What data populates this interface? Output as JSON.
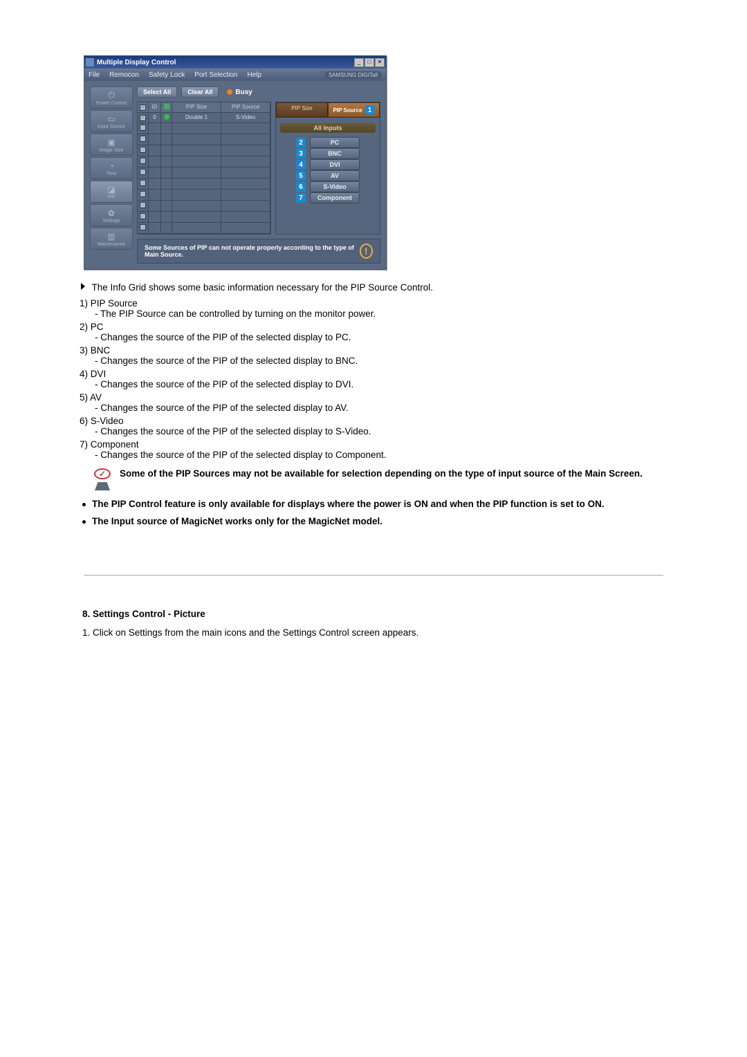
{
  "window": {
    "title": "Multiple Display Control",
    "brand": "SAMSUNG DIGITall",
    "menus": [
      "File",
      "Remocon",
      "Safety Lock",
      "Port Selection",
      "Help"
    ],
    "win_buttons": [
      "_",
      "□",
      "✕"
    ]
  },
  "sidebar": [
    {
      "label": "Power Control",
      "glyph": "⏻"
    },
    {
      "label": "Input Source",
      "glyph": "▭"
    },
    {
      "label": "Image Size",
      "glyph": "▣"
    },
    {
      "label": "Time",
      "glyph": "◔"
    },
    {
      "label": "PIP",
      "glyph": "◪"
    },
    {
      "label": "Settings",
      "glyph": "✿"
    },
    {
      "label": "Maintenance",
      "glyph": "▥"
    }
  ],
  "top_controls": {
    "select_all": "Select All",
    "clear_all": "Clear All",
    "busy": "Busy"
  },
  "grid": {
    "headers": {
      "chk": "",
      "id": "ID",
      "status": "",
      "pip_size": "PIP Size",
      "pip_source": "PIP Source"
    },
    "rows": [
      {
        "checked": true,
        "id": "0",
        "status": "green",
        "pip_size": "Double 1",
        "pip_source": "S-Video"
      },
      {
        "checked": false,
        "id": "",
        "status": "",
        "pip_size": "",
        "pip_source": ""
      },
      {
        "checked": false,
        "id": "",
        "status": "",
        "pip_size": "",
        "pip_source": ""
      },
      {
        "checked": false,
        "id": "",
        "status": "",
        "pip_size": "",
        "pip_source": ""
      },
      {
        "checked": false,
        "id": "",
        "status": "",
        "pip_size": "",
        "pip_source": ""
      },
      {
        "checked": false,
        "id": "",
        "status": "",
        "pip_size": "",
        "pip_source": ""
      },
      {
        "checked": false,
        "id": "",
        "status": "",
        "pip_size": "",
        "pip_source": ""
      },
      {
        "checked": false,
        "id": "",
        "status": "",
        "pip_size": "",
        "pip_source": ""
      },
      {
        "checked": false,
        "id": "",
        "status": "",
        "pip_size": "",
        "pip_source": ""
      },
      {
        "checked": false,
        "id": "",
        "status": "",
        "pip_size": "",
        "pip_source": ""
      },
      {
        "checked": false,
        "id": "",
        "status": "",
        "pip_size": "",
        "pip_source": ""
      }
    ]
  },
  "inputs_panel": {
    "tabs": [
      {
        "label": "PIP Size",
        "active": false
      },
      {
        "label": "PIP Source",
        "active": true,
        "badge": "1"
      }
    ],
    "header": "All Inputs",
    "items": [
      {
        "badge": "2",
        "label": "PC"
      },
      {
        "badge": "3",
        "label": "BNC"
      },
      {
        "badge": "4",
        "label": "DVI"
      },
      {
        "badge": "5",
        "label": "AV"
      },
      {
        "badge": "6",
        "label": "S-Video"
      },
      {
        "badge": "7",
        "label": "Component"
      }
    ]
  },
  "warning_bar": "Some Sources of PIP can not operate properly according to the type of Main Source.",
  "body": {
    "intro": "The Info Grid shows some basic information necessary for the PIP Source Control.",
    "items": [
      {
        "label": "1) PIP Source",
        "desc": "The PIP Source can be controlled by turning on the monitor power."
      },
      {
        "label": "2) PC",
        "desc": "Changes the source of the PIP of the selected display to PC."
      },
      {
        "label": "3) BNC",
        "desc": "Changes the source of the PIP of the selected display to BNC."
      },
      {
        "label": "4) DVI",
        "desc": "Changes the source of the PIP of the selected display to DVI."
      },
      {
        "label": "5) AV",
        "desc": "Changes the source of the PIP of the selected display to AV."
      },
      {
        "label": "6) S-Video",
        "desc": "Changes the source of the PIP of the selected display to S-Video."
      },
      {
        "label": "7) Component",
        "desc": "Changes the source of the PIP of the selected display to Component."
      }
    ],
    "note": "Some of the PIP Sources may not be available for selection depending on the type of input source of the Main Screen.",
    "bullets": [
      "The PIP Control feature is only available for displays where the power is ON and when the PIP function is set to ON.",
      "The Input source of MagicNet works only for the MagicNet model."
    ]
  },
  "section8": {
    "heading": "8. Settings Control - Picture",
    "step": "1.  Click on Settings from the main icons and the Settings Control screen appears."
  },
  "colors": {
    "window_title_bg": "#1a3a7a",
    "app_body_bg": "#5a6a82",
    "panel_border": "#3a4a60",
    "badge_bg": "#1a88d0",
    "busy_dot": "#f08020",
    "tab_active_bg": "#b07840"
  }
}
